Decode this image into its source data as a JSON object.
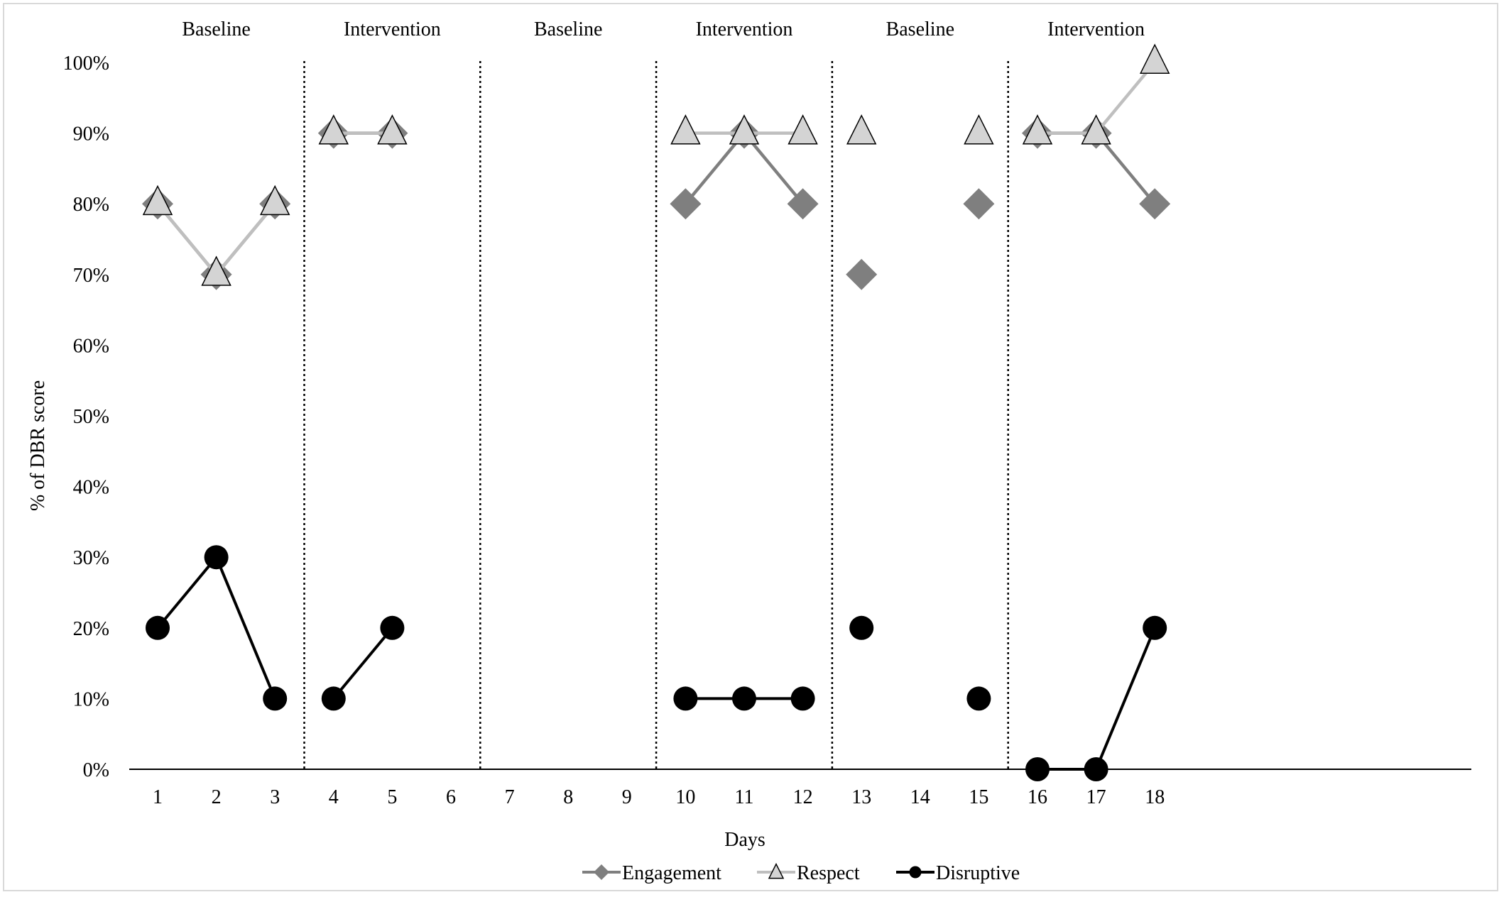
{
  "chart_data": {
    "type": "line",
    "xlabel": "Days",
    "ylabel": "% of DBR score",
    "ylim": [
      0,
      100
    ],
    "y_ticks": [
      "0%",
      "10%",
      "20%",
      "30%",
      "40%",
      "50%",
      "60%",
      "70%",
      "80%",
      "90%",
      "100%"
    ],
    "x_ticks": [
      "1",
      "2",
      "3",
      "4",
      "5",
      "6",
      "7",
      "8",
      "9",
      "10",
      "11",
      "12",
      "13",
      "14",
      "15",
      "16",
      "17",
      "18"
    ],
    "phases": [
      {
        "label": "Baseline",
        "days": [
          1,
          3
        ]
      },
      {
        "label": "Intervention",
        "days": [
          4,
          6
        ]
      },
      {
        "label": "Baseline",
        "days": [
          7,
          9
        ]
      },
      {
        "label": "Intervention",
        "days": [
          10,
          12
        ]
      },
      {
        "label": "Baseline",
        "days": [
          13,
          15
        ]
      },
      {
        "label": "Intervention",
        "days": [
          16,
          18
        ]
      }
    ],
    "legend_position": "bottom",
    "series": [
      {
        "name": "Engagement",
        "marker": "diamond",
        "color": "#7f7f7f",
        "points": [
          [
            1,
            80
          ],
          [
            2,
            70
          ],
          [
            3,
            80
          ],
          [
            4,
            90
          ],
          [
            5,
            90
          ],
          [
            10,
            80
          ],
          [
            11,
            90
          ],
          [
            12,
            80
          ],
          [
            13,
            70
          ],
          [
            15,
            80
          ],
          [
            16,
            90
          ],
          [
            17,
            90
          ],
          [
            18,
            80
          ]
        ]
      },
      {
        "name": "Respect",
        "marker": "triangle",
        "color": "#bfbfbf",
        "points": [
          [
            1,
            80
          ],
          [
            2,
            70
          ],
          [
            3,
            80
          ],
          [
            4,
            90
          ],
          [
            5,
            90
          ],
          [
            10,
            90
          ],
          [
            11,
            90
          ],
          [
            12,
            90
          ],
          [
            13,
            90
          ],
          [
            15,
            90
          ],
          [
            16,
            90
          ],
          [
            17,
            90
          ],
          [
            18,
            100
          ]
        ]
      },
      {
        "name": "Disruptive",
        "marker": "circle",
        "color": "#000000",
        "points": [
          [
            1,
            20
          ],
          [
            2,
            30
          ],
          [
            3,
            10
          ],
          [
            4,
            10
          ],
          [
            5,
            20
          ],
          [
            10,
            10
          ],
          [
            11,
            10
          ],
          [
            12,
            10
          ],
          [
            13,
            20
          ],
          [
            15,
            10
          ],
          [
            16,
            0
          ],
          [
            17,
            0
          ],
          [
            18,
            20
          ]
        ]
      }
    ]
  }
}
